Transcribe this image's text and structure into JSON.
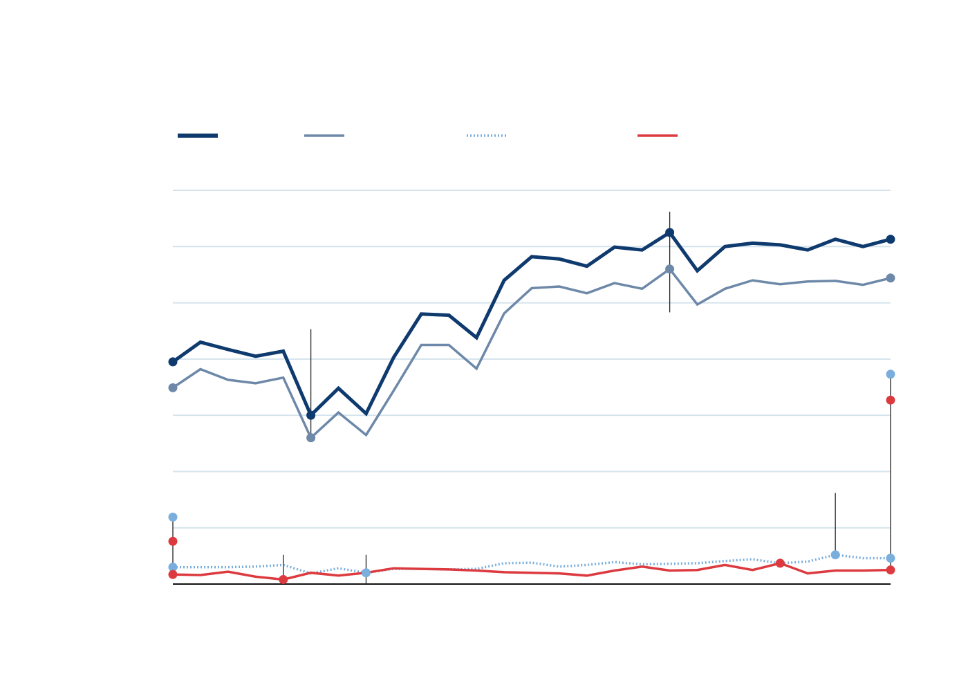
{
  "chart_data": {
    "type": "line",
    "title": "",
    "subtitle": "",
    "xlabel": "",
    "ylabel": "",
    "x": [
      1,
      2,
      3,
      4,
      5,
      6,
      7,
      8,
      9,
      10,
      11,
      12,
      13,
      14,
      15,
      16,
      17,
      18,
      19,
      20,
      21,
      22,
      23,
      24,
      25,
      26,
      27
    ],
    "xlim": [
      1,
      27
    ],
    "ylim": [
      0,
      7
    ],
    "ygrid": [
      1,
      2,
      3,
      4,
      5,
      6,
      7
    ],
    "grid": true,
    "legend_position": "top-left",
    "series": [
      {
        "id": "series-1",
        "color": "#0f3a6e",
        "style": "solid-thick",
        "values": [
          3.95,
          4.3,
          4.17,
          4.05,
          4.14,
          3.0,
          3.48,
          3.03,
          4.03,
          4.8,
          4.78,
          4.38,
          5.4,
          5.82,
          5.78,
          5.65,
          5.99,
          5.94,
          6.25,
          5.57,
          6.0,
          6.06,
          6.03,
          5.94,
          6.13,
          6.0,
          6.13
        ],
        "marked_points": [
          1,
          6,
          19,
          27
        ]
      },
      {
        "id": "series-2",
        "color": "#6d88a8",
        "style": "solid",
        "values": [
          3.49,
          3.82,
          3.63,
          3.57,
          3.67,
          2.6,
          3.05,
          2.65,
          3.44,
          4.25,
          4.25,
          3.83,
          4.81,
          5.26,
          5.29,
          5.17,
          5.35,
          5.25,
          5.6,
          4.97,
          5.25,
          5.4,
          5.33,
          5.38,
          5.39,
          5.32,
          5.44
        ],
        "marked_points": [
          1,
          6,
          19,
          27
        ]
      },
      {
        "id": "series-3",
        "color": "#7aaedc",
        "style": "dotted",
        "values": [
          0.3,
          0.3,
          0.3,
          0.31,
          0.34,
          0.19,
          0.28,
          0.2,
          0.27,
          0.27,
          0.26,
          0.27,
          0.37,
          0.38,
          0.31,
          0.34,
          0.39,
          0.35,
          0.36,
          0.37,
          0.41,
          0.44,
          0.37,
          0.4,
          0.52,
          0.46,
          0.46
        ],
        "marked_points": [
          1,
          8,
          25,
          27
        ],
        "extra_points": [
          {
            "x": 1,
            "y": 1.19
          },
          {
            "x": 27,
            "y": 3.73
          }
        ]
      },
      {
        "id": "series-4",
        "color": "#dc3a3f",
        "style": "solid",
        "values": [
          0.17,
          0.16,
          0.22,
          0.13,
          0.08,
          0.2,
          0.15,
          0.2,
          0.28,
          0.27,
          0.26,
          0.24,
          0.21,
          0.2,
          0.19,
          0.15,
          0.24,
          0.31,
          0.24,
          0.25,
          0.34,
          0.25,
          0.37,
          0.19,
          0.24,
          0.24,
          0.25
        ],
        "marked_points": [
          1,
          5,
          23,
          27
        ],
        "extra_points": [
          {
            "x": 1,
            "y": 0.76
          },
          {
            "x": 27,
            "y": 3.27
          }
        ]
      }
    ],
    "reference_lines": [
      {
        "x": 1,
        "from": 0.17,
        "to": 1.19
      },
      {
        "x": 5,
        "from": 0,
        "to": 0.52
      },
      {
        "x": 6,
        "from": 2.6,
        "to": 4.53
      },
      {
        "x": 8,
        "from": 0,
        "to": 0.52
      },
      {
        "x": 19,
        "from": 4.83,
        "to": 6.62
      },
      {
        "x": 25,
        "from": 0.52,
        "to": 1.62
      },
      {
        "x": 27,
        "from": 0.25,
        "to": 3.73
      }
    ]
  }
}
